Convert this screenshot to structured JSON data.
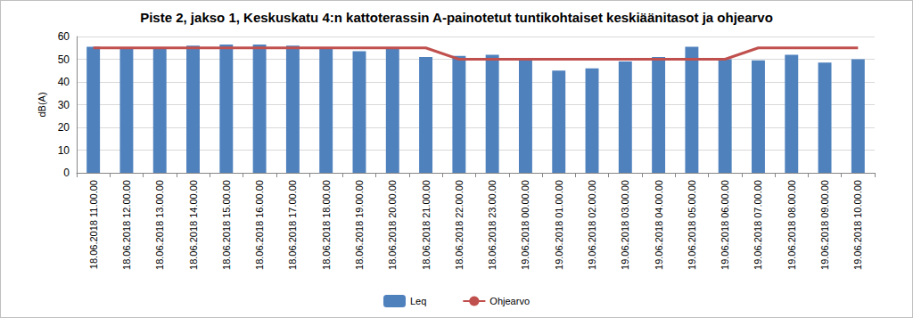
{
  "chart_data": {
    "type": "bar",
    "title": "Piste 2, jakso 1, Keskuskatu 4:n kattoterassin A-painotetut tuntikohtaiset keskiäänitasot ja ohjearvo",
    "y_label": "dB(A)",
    "categories": [
      "18.06.2018 11.00.00",
      "18.06.2018 12.00.00",
      "18.06.2018 13.00.00",
      "18.06.2018 14.00.00",
      "18.06.2018 15.00.00",
      "18.06.2018 16.00.00",
      "18.06.2018 17.00.00",
      "18.06.2018 18.00.00",
      "18.06.2018 19.00.00",
      "18.06.2018 20.00.00",
      "18.06.2018 21.00.00",
      "18.06.2018 22.00.00",
      "18.06.2018 23.00.00",
      "19.06.2018 00.00.00",
      "19.06.2018 01.00.00",
      "19.06.2018 02.00.00",
      "19.06.2018 03.00.00",
      "19.06.2018 04.00.00",
      "19.06.2018 05.00.00",
      "19.06.2018 06.00.00",
      "19.06.2018 07.00.00",
      "19.06.2018 08.00.00",
      "19.06.2018 09.00.00",
      "19.06.2018 10.00.00"
    ],
    "series": [
      {
        "name": "Leq",
        "type": "bar",
        "color": "#4f81bd",
        "values": [
          55.5,
          55,
          55,
          56,
          56.5,
          56.5,
          56,
          55,
          53.5,
          55,
          51,
          51.5,
          52,
          50,
          45,
          46,
          49,
          51,
          55.5,
          50,
          49.5,
          52,
          48.5,
          50
        ]
      },
      {
        "name": "Ohjearvo",
        "type": "line",
        "color": "#c0504d",
        "marker": "none",
        "line_style": "solid",
        "values": [
          55,
          55,
          55,
          55,
          55,
          55,
          55,
          55,
          55,
          55,
          55,
          50,
          50,
          50,
          50,
          50,
          50,
          50,
          50,
          50,
          55,
          55,
          55,
          55
        ]
      }
    ],
    "ylim": [
      0,
      60
    ],
    "yticks": [
      0,
      10,
      20,
      30,
      40,
      50,
      60
    ],
    "grid": true,
    "legend": "bottom"
  }
}
